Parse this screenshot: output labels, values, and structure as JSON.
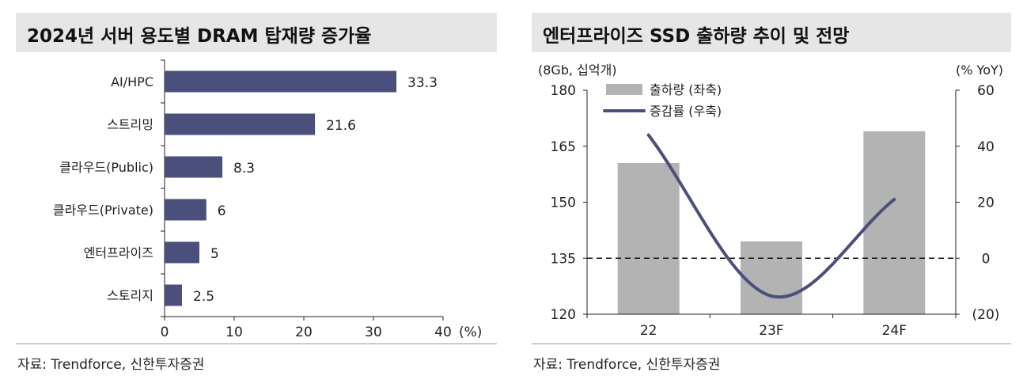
{
  "charts": [
    {
      "title": "2024년 서버 용도별 DRAM 탑재량 증가율",
      "source": "자료: Trendforce, 신한투자증권",
      "chart_data": {
        "type": "bar",
        "orientation": "horizontal",
        "categories": [
          "AI/HPC",
          "스트리밍",
          "클라우드(Public)",
          "클라우드(Private)",
          "엔터프라이즈",
          "스토리지"
        ],
        "values": [
          33.3,
          21.6,
          8.3,
          6,
          5,
          2.5
        ],
        "value_labels": [
          "33.3",
          "21.6",
          "8.3",
          "6",
          "5",
          "2.5"
        ],
        "xlim": [
          0,
          40
        ],
        "x_ticks": [
          0,
          10,
          20,
          30,
          40
        ],
        "x_unit": "(%)",
        "grid": false,
        "bar_color": "#4a4f7c"
      }
    },
    {
      "title": "엔터프라이즈 SSD 출하량 추이 및 전망",
      "source": "자료: Trendforce, 신한투자증권",
      "chart_data": {
        "type": "bar+line",
        "categories": [
          "22",
          "23F",
          "24F"
        ],
        "left_axis_label": "(8Gb, 십억개)",
        "right_axis_label": "(% YoY)",
        "y_left_lim": [
          120,
          180
        ],
        "y_left_ticks": [
          "120",
          "135",
          "150",
          "165",
          "180"
        ],
        "y_right_lim": [
          -20,
          60
        ],
        "y_right_ticks": [
          "(20)",
          "0",
          "20",
          "40",
          "60"
        ],
        "legend_position": "top-left",
        "zero_line": "dashed",
        "grid": false,
        "series": [
          {
            "name": "출하량 (좌축)",
            "type": "bar",
            "axis": "left",
            "values": [
              160.5,
              139.5,
              169
            ],
            "color": "#b3b3b3"
          },
          {
            "name": "증감률 (우축)",
            "type": "line",
            "axis": "right",
            "values": [
              44,
              -13.5,
              21
            ],
            "color": "#4a4f7c"
          }
        ]
      }
    }
  ]
}
